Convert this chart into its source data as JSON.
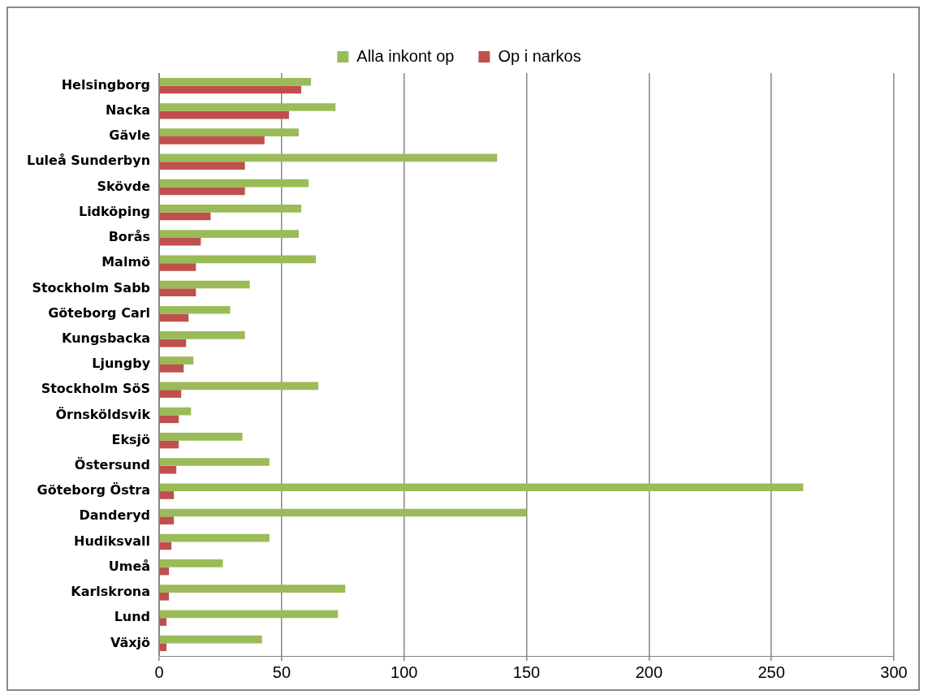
{
  "chart_data": {
    "type": "bar",
    "orientation": "horizontal",
    "categories": [
      "Helsingborg",
      "Nacka",
      "Gävle",
      "Luleå Sunderbyn",
      "Skövde",
      "Lidköping",
      "Borås",
      "Malmö",
      "Stockholm Sabb",
      "Göteborg Carl",
      "Kungsbacka",
      "Ljungby",
      "Stockholm SöS",
      "Örnsköldsvik",
      "Eksjö",
      "Östersund",
      "Göteborg Östra",
      "Danderyd",
      "Hudiksvall",
      "Umeå",
      "Karlskrona",
      "Lund",
      "Växjö"
    ],
    "series": [
      {
        "name": "Alla inkont op",
        "color": "#9bbb59",
        "values": [
          62,
          72,
          57,
          138,
          61,
          58,
          57,
          64,
          37,
          29,
          35,
          14,
          65,
          13,
          34,
          45,
          263,
          150,
          45,
          26,
          76,
          73,
          42
        ]
      },
      {
        "name": "Op i narkos",
        "color": "#c0504d",
        "values": [
          58,
          53,
          43,
          35,
          35,
          21,
          17,
          15,
          15,
          12,
          11,
          10,
          9,
          8,
          8,
          7,
          6,
          6,
          5,
          4,
          4,
          3,
          3
        ]
      }
    ],
    "xlim": [
      0,
      300
    ],
    "xticks": [
      0,
      50,
      100,
      150,
      200,
      250,
      300
    ],
    "grid": "x",
    "legend": "top"
  }
}
